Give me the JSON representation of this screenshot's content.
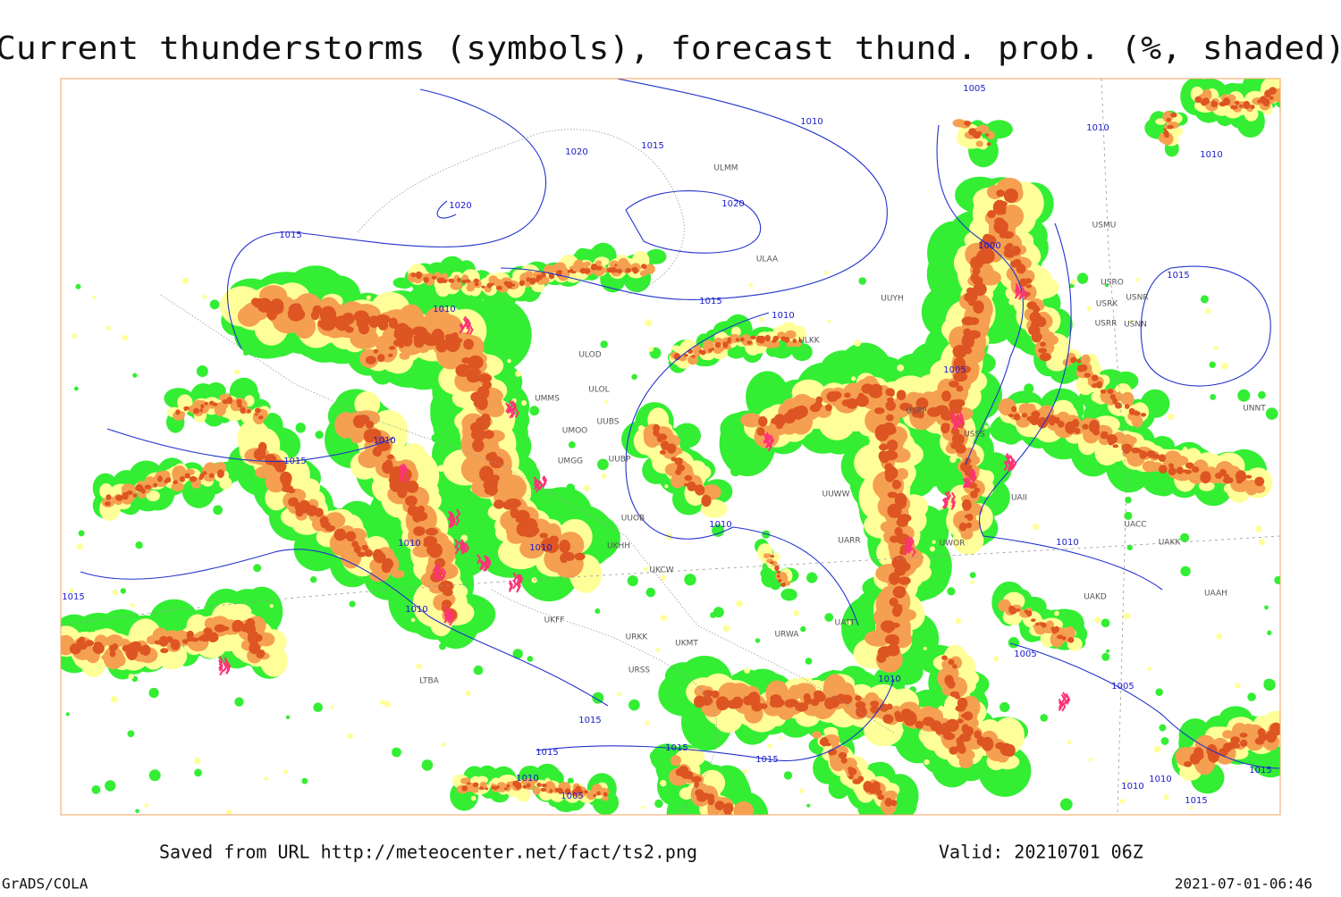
{
  "title": "Current thunderstorms (symbols), forecast thund. prob. (%, shaded)",
  "footer": {
    "source": "Saved from URL http://meteocenter.net/fact/ts2.png",
    "valid": "Valid: 20210701 06Z",
    "software": "GrADS/COLA",
    "timestamp": "2021-07-01-06:46"
  },
  "isobar_labels": [
    "1020",
    "1020",
    "1020",
    "1015",
    "1015",
    "1015",
    "1015",
    "1015",
    "1015",
    "1015",
    "1015",
    "1015",
    "1015",
    "1015",
    "1015",
    "1010",
    "1010",
    "1010",
    "1010",
    "1010",
    "1010",
    "1010",
    "1010",
    "1010",
    "1010",
    "1010",
    "1010",
    "1010",
    "1010",
    "1010",
    "1005",
    "1005",
    "1005",
    "1005",
    "1005",
    "1000"
  ],
  "station_codes": [
    "ULAA",
    "ULOL",
    "ULOD",
    "UUYH",
    "ULKK",
    "UMMS",
    "UMOO",
    "UUBS",
    "UUBP",
    "UMGG",
    "UUOB",
    "UKHH",
    "UKCW",
    "UUWW",
    "UARR",
    "UWOR",
    "USPP",
    "USSS",
    "UACC",
    "UAKK",
    "UAKD",
    "UAAH",
    "UNNT",
    "USRR",
    "USNN",
    "USRK",
    "USRO",
    "USNR",
    "USMU",
    "ULMM",
    "UAII",
    "URSS",
    "UKFF",
    "URKK",
    "UKMT",
    "LTBA",
    "URWA",
    "UATT"
  ]
}
